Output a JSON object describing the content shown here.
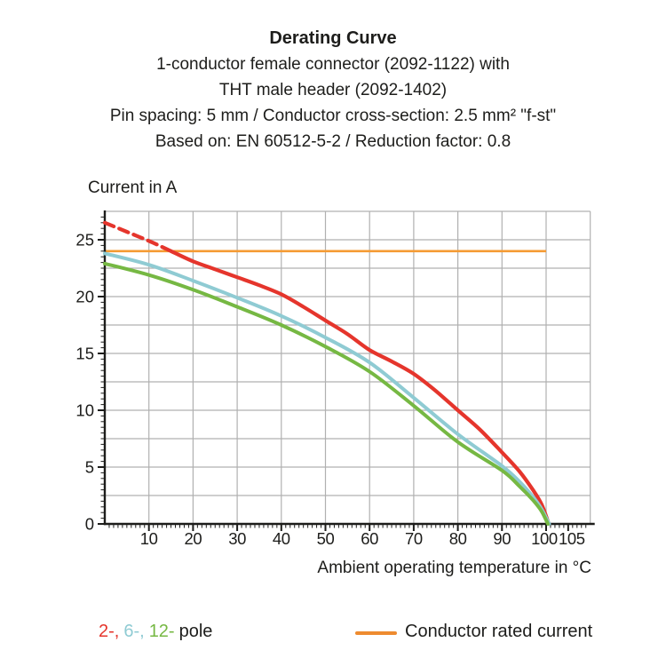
{
  "header": {
    "lines": [
      "Derating Curve",
      "1-conductor female connector (2092-1122) with",
      "THT male header (2092-1402)",
      "Pin spacing: 5 mm / Conductor cross-section: 2.5 mm² \"f-st\"",
      "Based on: EN 60512-5-2 / Reduction factor: 0.8"
    ]
  },
  "axes": {
    "y_title": "Current in A",
    "x_title": "Ambient operating temperature in °C"
  },
  "legend": {
    "poles": [
      {
        "label": "2-,",
        "color": "#E5352C"
      },
      {
        "label": "6-,",
        "color": "#8FCBD3"
      },
      {
        "label": "12-",
        "color": "#76B843"
      }
    ],
    "poles_suffix": "pole",
    "rated_label": "Conductor rated current",
    "rated_swatch_color": "#EE8B2F"
  },
  "chart_data": {
    "type": "line",
    "title": "Derating Curve",
    "xlabel": "Ambient operating temperature in °C",
    "ylabel": "Current in A",
    "xlim": [
      0,
      110
    ],
    "ylim": [
      0,
      27.5
    ],
    "x_ticks": [
      10,
      20,
      30,
      40,
      50,
      60,
      70,
      80,
      90,
      100,
      105
    ],
    "y_ticks": [
      0,
      5,
      10,
      15,
      20,
      25
    ],
    "grid": true,
    "grid_step_x": 10,
    "grid_step_y": 2.5,
    "x_minor_step": 1,
    "y_minor_step": 0.5,
    "grid_color": "#B0B0B0",
    "axis_color": "#1d1d1b",
    "legend_position": "bottom",
    "series": [
      {
        "name": "2-pole",
        "color": "#E5352C",
        "width": 4.2,
        "dashed_until_x": 15,
        "points": [
          [
            0,
            26.5
          ],
          [
            5,
            25.7
          ],
          [
            10,
            24.9
          ],
          [
            15,
            24.0
          ],
          [
            20,
            23.1
          ],
          [
            25,
            22.4
          ],
          [
            30,
            21.7
          ],
          [
            35,
            21.0
          ],
          [
            40,
            20.2
          ],
          [
            45,
            19.1
          ],
          [
            50,
            17.9
          ],
          [
            55,
            16.7
          ],
          [
            60,
            15.3
          ],
          [
            65,
            14.3
          ],
          [
            70,
            13.2
          ],
          [
            75,
            11.7
          ],
          [
            80,
            10.0
          ],
          [
            85,
            8.3
          ],
          [
            90,
            6.3
          ],
          [
            94,
            4.6
          ],
          [
            97,
            3.0
          ],
          [
            99,
            1.7
          ],
          [
            100.6,
            0
          ]
        ]
      },
      {
        "name": "6-pole",
        "color": "#8FCBD3",
        "width": 4,
        "points": [
          [
            0,
            23.8
          ],
          [
            10,
            22.8
          ],
          [
            20,
            21.4
          ],
          [
            30,
            19.9
          ],
          [
            40,
            18.3
          ],
          [
            50,
            16.4
          ],
          [
            60,
            14.2
          ],
          [
            70,
            11.1
          ],
          [
            80,
            7.9
          ],
          [
            90,
            5.1
          ],
          [
            94,
            3.7
          ],
          [
            97,
            2.4
          ],
          [
            99,
            1.3
          ],
          [
            100.7,
            0
          ]
        ]
      },
      {
        "name": "12-pole",
        "color": "#76B843",
        "width": 4,
        "points": [
          [
            0,
            22.9
          ],
          [
            10,
            21.9
          ],
          [
            20,
            20.6
          ],
          [
            30,
            19.1
          ],
          [
            40,
            17.5
          ],
          [
            50,
            15.6
          ],
          [
            60,
            13.4
          ],
          [
            70,
            10.4
          ],
          [
            80,
            7.2
          ],
          [
            90,
            4.7
          ],
          [
            94,
            3.3
          ],
          [
            97,
            2.1
          ],
          [
            99,
            1.1
          ],
          [
            100.4,
            0
          ]
        ]
      }
    ],
    "rated_current": {
      "label": "Conductor rated current",
      "value": 24,
      "x_start": 0,
      "x_end": 100,
      "color": "#F59B33"
    }
  }
}
